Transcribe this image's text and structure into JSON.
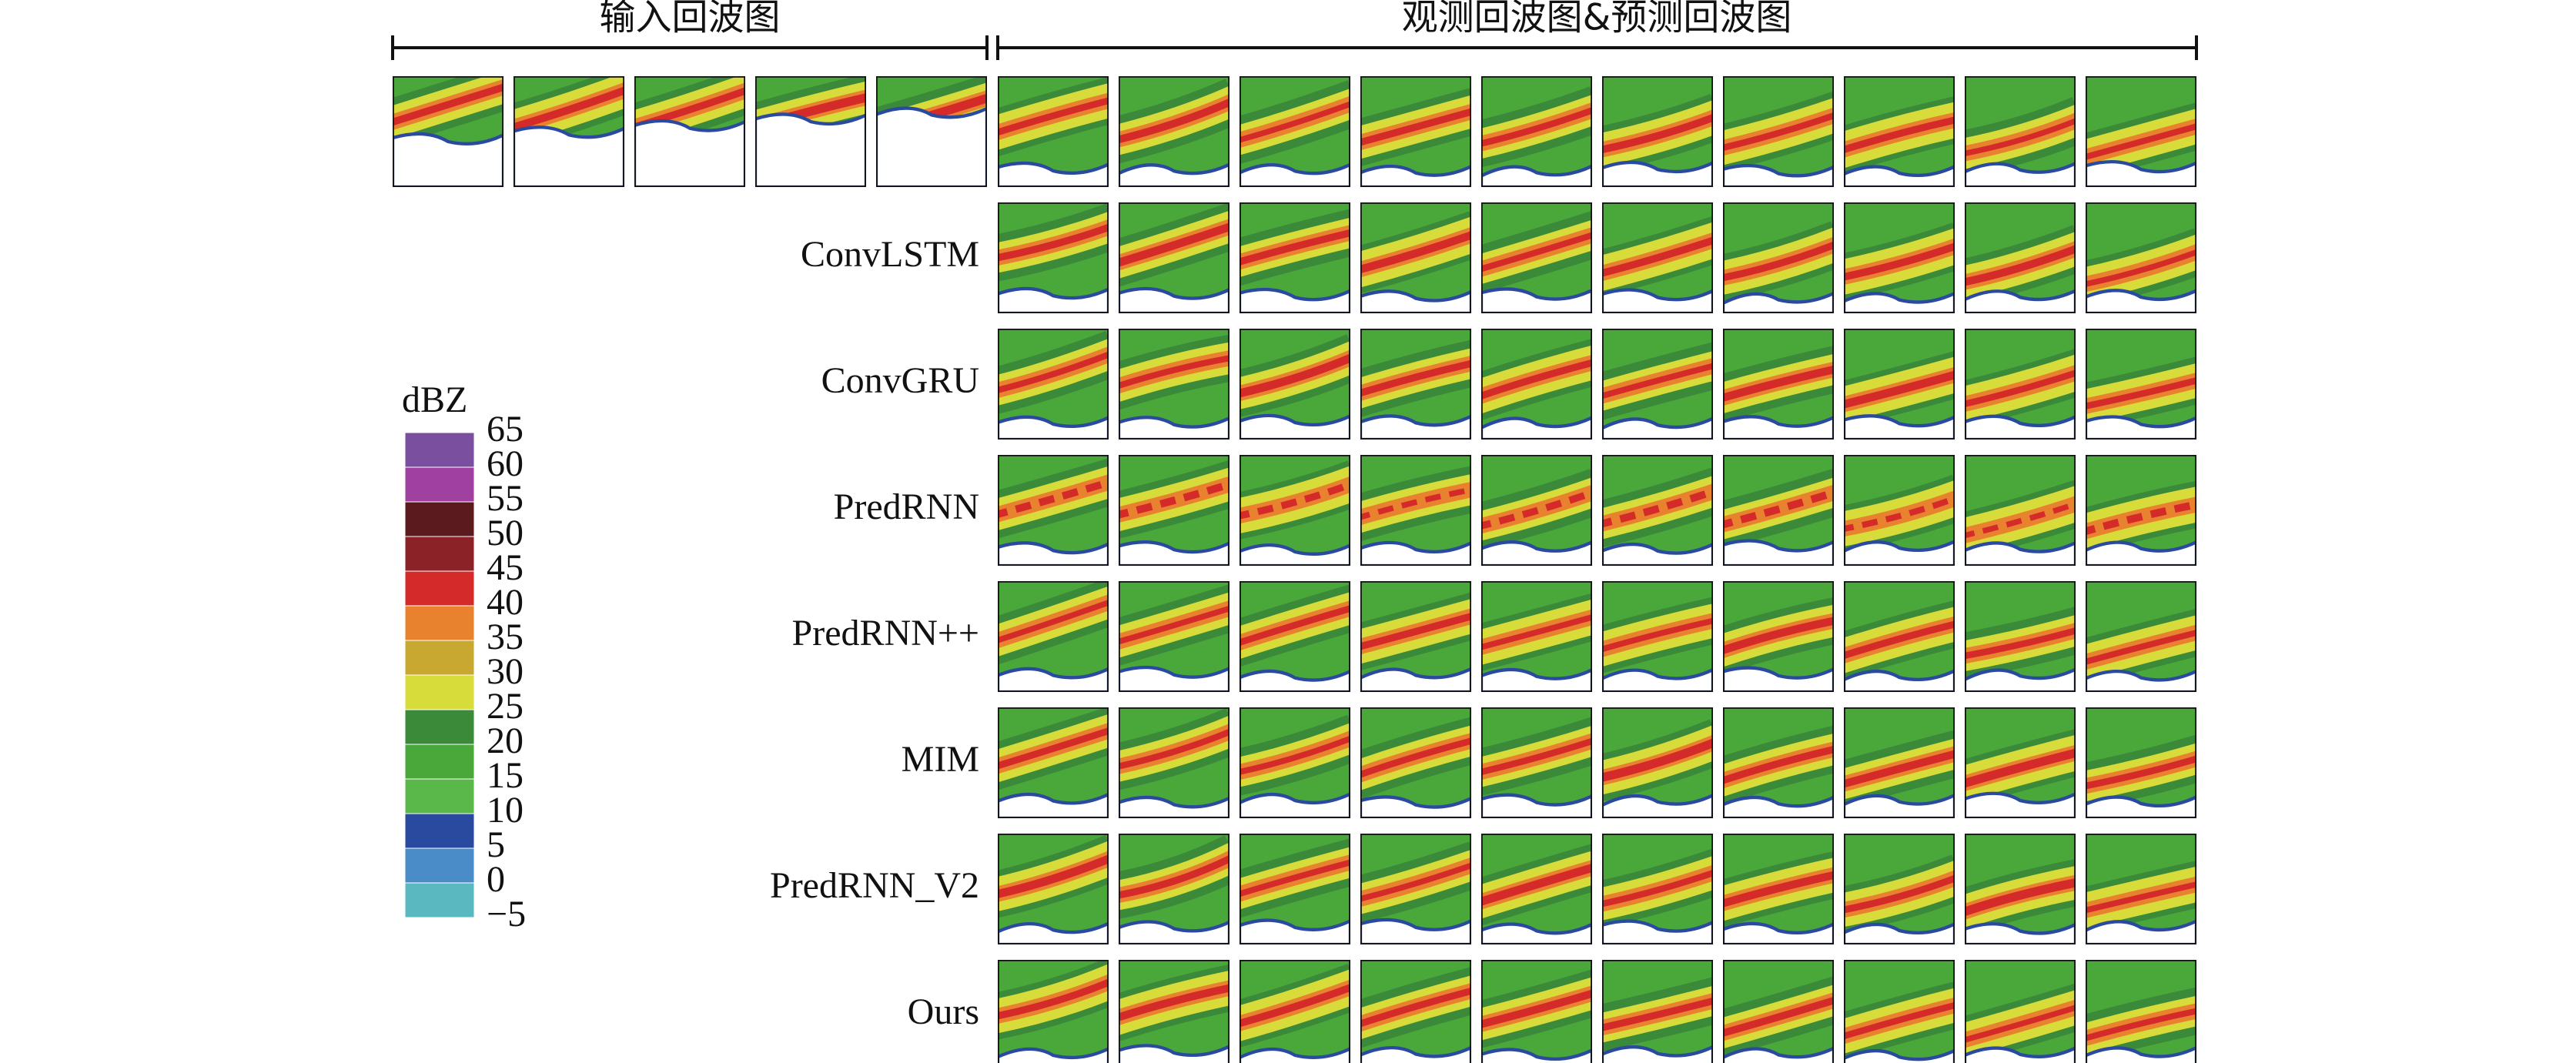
{
  "header": {
    "input_label": "输入回波图",
    "output_label": "观测回波图&预测回波图"
  },
  "rows": [
    "ConvLSTM",
    "ConvGRU",
    "PredRNN",
    "PredRNN++",
    "MIM",
    "PredRNN_V2",
    "Ours"
  ],
  "colorbar": {
    "unit": "dBZ",
    "ticks": [
      65,
      60,
      55,
      50,
      45,
      40,
      35,
      30,
      25,
      20,
      15,
      10,
      5,
      0,
      {
        "value": -5,
        "label": "−5"
      }
    ],
    "colors": [
      "#7b4fa0",
      "#a040a0",
      "#5a1a1e",
      "#8b2228",
      "#d42a2a",
      "#e8822e",
      "#c8a830",
      "#d8dc3a",
      "#3a8a3a",
      "#4aa83a",
      "#5ab84a",
      "#2a4aa0",
      "#4a8cc8",
      "#5ab8c0"
    ]
  }
}
